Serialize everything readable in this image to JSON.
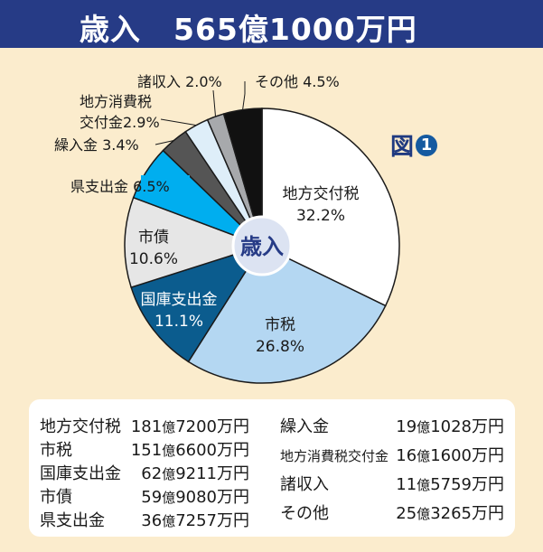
{
  "header": {
    "title": "歳入",
    "total": "565億1000万円"
  },
  "figure_label": "図",
  "figure_number": "1",
  "colors": {
    "header_bg": "#263b86",
    "page_bg": "#fbeccd"
  },
  "chart_data": {
    "type": "pie",
    "title": "歳入",
    "center_label": "歳入",
    "slices": [
      {
        "name": "地方交付税",
        "value": 32.2,
        "label": "32.2%",
        "color": "#ffffff"
      },
      {
        "name": "市税",
        "value": 26.8,
        "label": "26.8%",
        "color": "#b4d7f2"
      },
      {
        "name": "国庫支出金",
        "value": 11.1,
        "label": "11.1%",
        "color": "#0b5c8e"
      },
      {
        "name": "市債",
        "value": 10.6,
        "label": "10.6%",
        "color": "#e6e6e6"
      },
      {
        "name": "県支出金",
        "value": 6.5,
        "label": "6.5%",
        "color": "#00aeef"
      },
      {
        "name": "繰入金",
        "value": 3.4,
        "label": "3.4%",
        "color": "#555555"
      },
      {
        "name": "地方消費税交付金",
        "value": 2.9,
        "label": "2.9%",
        "color": "#deeef9"
      },
      {
        "name": "諸収入",
        "value": 2.0,
        "label": "2.0%",
        "color": "#a7a9ac"
      },
      {
        "name": "その他",
        "value": 4.5,
        "label": "4.5%",
        "color": "#111111"
      }
    ],
    "outside_labels": [
      {
        "lines": [
          "諸収入 2.0%"
        ]
      },
      {
        "lines": [
          "その他 4.5%"
        ]
      },
      {
        "lines": [
          "地方消費税",
          "交付金2.9%"
        ]
      },
      {
        "lines": [
          "繰入金 3.4%"
        ]
      },
      {
        "lines": [
          "県支出金 6.5%"
        ]
      }
    ]
  },
  "table": {
    "left": [
      {
        "name": "地方交付税",
        "oku": "181",
        "rest": "7200万円"
      },
      {
        "name": "市税",
        "oku": "151",
        "rest": "6600万円"
      },
      {
        "name": "国庫支出金",
        "oku": "62",
        "rest": "9211万円"
      },
      {
        "name": "市債",
        "oku": "59",
        "rest": "9080万円"
      },
      {
        "name": "県支出金",
        "oku": "36",
        "rest": "7257万円"
      }
    ],
    "right": [
      {
        "name": "繰入金",
        "oku": "19",
        "rest": "1028万円"
      },
      {
        "name": "地方消費税交付金",
        "oku": "16",
        "rest": "1600万円"
      },
      {
        "name": "諸収入",
        "oku": "11",
        "rest": "5759万円"
      },
      {
        "name": "その他",
        "oku": "25",
        "rest": "3265万円"
      }
    ],
    "oku_unit": "億"
  }
}
